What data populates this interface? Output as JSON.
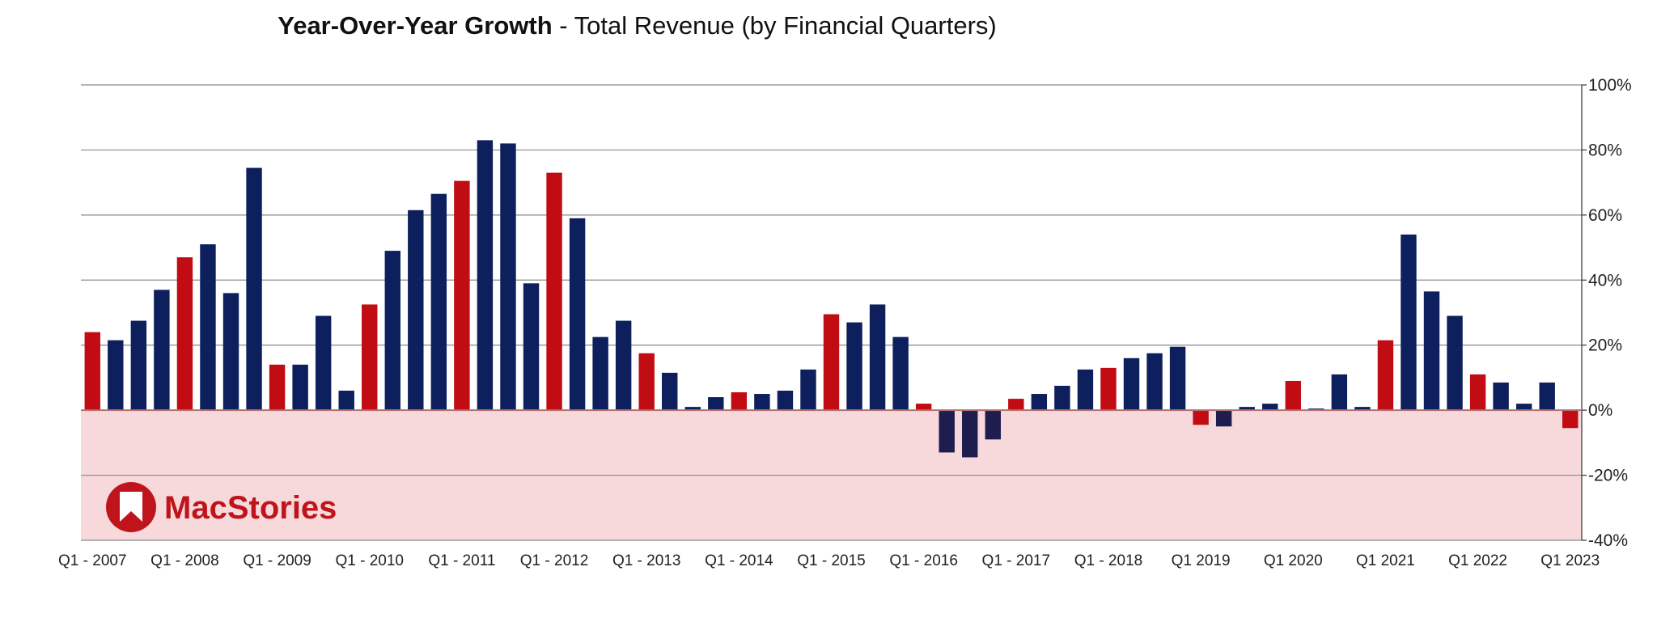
{
  "chart_data": {
    "type": "bar",
    "title_bold": "Year-Over-Year Growth",
    "title_rest": "- Total Revenue (by Financial Quarters)",
    "y_tick_labels": [
      "100%",
      "80%",
      "60%",
      "40%",
      "20%",
      "0%",
      "-20%",
      "-40%"
    ],
    "y_ticks": [
      100,
      80,
      60,
      40,
      20,
      0,
      -20,
      -40
    ],
    "ylim": [
      -40,
      100
    ],
    "grid": true,
    "legend": "none",
    "x_tick_labels": [
      {
        "label": "Q1 - 2007",
        "index": 0
      },
      {
        "label": "Q1 - 2008",
        "index": 4
      },
      {
        "label": "Q1 - 2009",
        "index": 8
      },
      {
        "label": "Q1 - 2010",
        "index": 12
      },
      {
        "label": "Q1 - 2011",
        "index": 16
      },
      {
        "label": "Q1 - 2012",
        "index": 20
      },
      {
        "label": "Q1 - 2013",
        "index": 24
      },
      {
        "label": "Q1 - 2014",
        "index": 28
      },
      {
        "label": "Q1 - 2015",
        "index": 32
      },
      {
        "label": "Q1 - 2016",
        "index": 36
      },
      {
        "label": "Q1 - 2017",
        "index": 40
      },
      {
        "label": "Q1 - 2018",
        "index": 44
      },
      {
        "label": "Q1 2019",
        "index": 48
      },
      {
        "label": "Q1 2020",
        "index": 52
      },
      {
        "label": "Q1 2021",
        "index": 56
      },
      {
        "label": "Q1 2022",
        "index": 60
      },
      {
        "label": "Q1 2023",
        "index": 64
      }
    ],
    "values": [
      24,
      21.5,
      27.5,
      37,
      47,
      51,
      36,
      74.5,
      14,
      14,
      29,
      6,
      32.5,
      49,
      61.5,
      66.5,
      70.5,
      83,
      82,
      39,
      73,
      59,
      22.5,
      27.5,
      17.5,
      11.5,
      1,
      4,
      5.5,
      5,
      6,
      12.5,
      29.5,
      27,
      32.5,
      22.5,
      2,
      -13,
      -14.5,
      -9,
      3.5,
      5,
      7.5,
      12.5,
      13,
      16,
      17.5,
      19.5,
      -4.5,
      -5,
      1,
      2,
      9,
      0.5,
      11,
      1,
      21.5,
      54,
      36.5,
      29,
      11,
      8.5,
      2,
      8.5,
      -5.5
    ],
    "colors": {
      "q1_bar": "#c00c12",
      "positive_bar": "#0d1f5c",
      "negative_bar": "#1e1d4e",
      "negative_region": "#f7d9db",
      "gridline": "#8a8a8a",
      "zero_line": "#b07070"
    },
    "logo": {
      "text": "MacStories",
      "color": "#c0141c"
    }
  }
}
